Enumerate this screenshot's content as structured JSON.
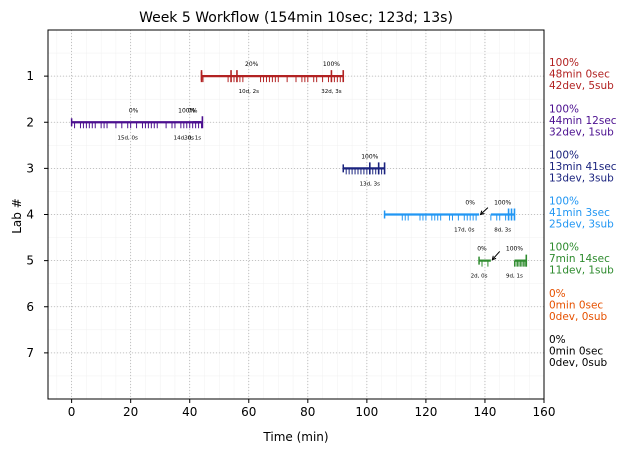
{
  "chart_data": {
    "type": "timeline",
    "title": "Week 5 Workflow (154min 10sec; 123d; 13s)",
    "xlabel": "Time (min)",
    "ylabel": "Lab #",
    "xlim": [
      -8,
      160
    ],
    "ylim": [
      8,
      0
    ],
    "xticks": [
      0,
      20,
      40,
      60,
      80,
      100,
      120,
      140,
      160
    ],
    "yticks": [
      1,
      2,
      3,
      4,
      5,
      6,
      7
    ],
    "grid": true,
    "labs": [
      {
        "lab": 1,
        "color": "#b22222",
        "start": 44,
        "end": 92,
        "summary": [
          "100%",
          "48min 0sec",
          "42dev, 5sub"
        ],
        "segments": [
          {
            "start": 44,
            "end": 65,
            "label": "10d, 2s",
            "label_x": 60
          },
          {
            "start": 65,
            "end": 92,
            "label": "32d, 3s",
            "label_x": 88
          }
        ],
        "pct_labels": [
          {
            "x": 61,
            "text": "20%"
          },
          {
            "x": 88,
            "text": "100%"
          }
        ],
        "dev_ticks": [
          44.5,
          53,
          54,
          55,
          56,
          57,
          58,
          64,
          65,
          66,
          67,
          68,
          69,
          70,
          73,
          76,
          78,
          79,
          80,
          82,
          83,
          85,
          87,
          88,
          89,
          90,
          91
        ],
        "sub_ticks": [
          44,
          54,
          56,
          88,
          92
        ],
        "arrow": null
      },
      {
        "lab": 2,
        "color": "#4b0f8f",
        "start": 0,
        "end": 44,
        "summary": [
          "100%",
          "44min 12sec",
          "32dev, 1sub"
        ],
        "segments": [
          {
            "start": 0,
            "end": 20,
            "label": "15d, 0s",
            "label_x": 19
          },
          {
            "start": 20,
            "end": 44,
            "label": "14d, 0s",
            "label_x": 38
          },
          {
            "start": 41,
            "end": 44,
            "label": "3d, 1s",
            "label_x": 41
          }
        ],
        "pct_labels": [
          {
            "x": 21,
            "text": "0%"
          },
          {
            "x": 39,
            "text": "100%"
          },
          {
            "x": 41,
            "text": "0%"
          }
        ],
        "dev_ticks": [
          1,
          3,
          4,
          5,
          6,
          7,
          8,
          10,
          11,
          12,
          15,
          17,
          19,
          20,
          22,
          24,
          25,
          26,
          27,
          28,
          29,
          32,
          34,
          35,
          37,
          38,
          39,
          40,
          41,
          42,
          43,
          44
        ],
        "sub_ticks": [
          44.3
        ],
        "arrow": null
      },
      {
        "lab": 3,
        "color": "#1a237e",
        "start": 92,
        "end": 106,
        "summary": [
          "100%",
          "13min 41sec",
          "13dev, 3sub"
        ],
        "segments": [
          {
            "start": 92,
            "end": 106,
            "label": "13d, 3s",
            "label_x": 101
          }
        ],
        "pct_labels": [
          {
            "x": 101,
            "text": "100%"
          }
        ],
        "dev_ticks": [
          93,
          94,
          95,
          96,
          97,
          98,
          99,
          100,
          101,
          102,
          103,
          104,
          105
        ],
        "sub_ticks": [
          101,
          104,
          106
        ],
        "arrow": null
      },
      {
        "lab": 4,
        "color": "#2196f3",
        "start": 106,
        "end": 150,
        "summary": [
          "100%",
          "41min 3sec",
          "25dev, 3sub"
        ],
        "segments": [
          {
            "start": 106,
            "end": 138,
            "label": "17d, 0s",
            "label_x": 133
          },
          {
            "start": 142,
            "end": 150,
            "label": "8d, 3s",
            "label_x": 146
          }
        ],
        "pct_labels": [
          {
            "x": 135,
            "text": "0%"
          },
          {
            "x": 146,
            "text": "100%"
          }
        ],
        "dev_ticks": [
          112,
          113,
          114,
          118,
          119,
          120,
          122,
          123,
          124,
          125,
          128,
          129,
          131,
          133,
          134,
          135,
          136,
          137,
          142,
          144,
          145,
          147,
          148,
          149,
          150
        ],
        "sub_ticks": [
          148,
          149,
          150
        ],
        "arrow": {
          "from": [
            141,
            3.85
          ],
          "to": [
            138.5,
            4.0
          ]
        }
      },
      {
        "lab": 5,
        "color": "#2e8b2e",
        "start": 138,
        "end": 154,
        "summary": [
          "100%",
          "7min 14sec",
          "11dev, 1sub"
        ],
        "segments": [
          {
            "start": 138,
            "end": 142,
            "label": "2d, 0s",
            "label_x": 138
          },
          {
            "start": 150,
            "end": 154,
            "label": "9d, 1s",
            "label_x": 150
          }
        ],
        "pct_labels": [
          {
            "x": 139,
            "text": "0%"
          },
          {
            "x": 150,
            "text": "100%"
          }
        ],
        "dev_ticks": [
          139,
          141,
          150,
          150.5,
          151,
          151.5,
          152,
          152.5,
          153,
          153.5,
          154
        ],
        "sub_ticks": [
          154
        ],
        "arrow": {
          "from": [
            145,
            4.8
          ],
          "to": [
            142.5,
            4.98
          ]
        }
      },
      {
        "lab": 6,
        "color": "#e65100",
        "start": null,
        "end": null,
        "summary": [
          "0%",
          "0min 0sec",
          "0dev, 0sub"
        ],
        "segments": [],
        "pct_labels": [],
        "dev_ticks": [],
        "sub_ticks": [],
        "arrow": null
      },
      {
        "lab": 7,
        "color": "#000000",
        "start": null,
        "end": null,
        "summary": [
          "0%",
          "0min 0sec",
          "0dev, 0sub"
        ],
        "segments": [],
        "pct_labels": [],
        "dev_ticks": [],
        "sub_ticks": [],
        "arrow": null
      }
    ]
  }
}
